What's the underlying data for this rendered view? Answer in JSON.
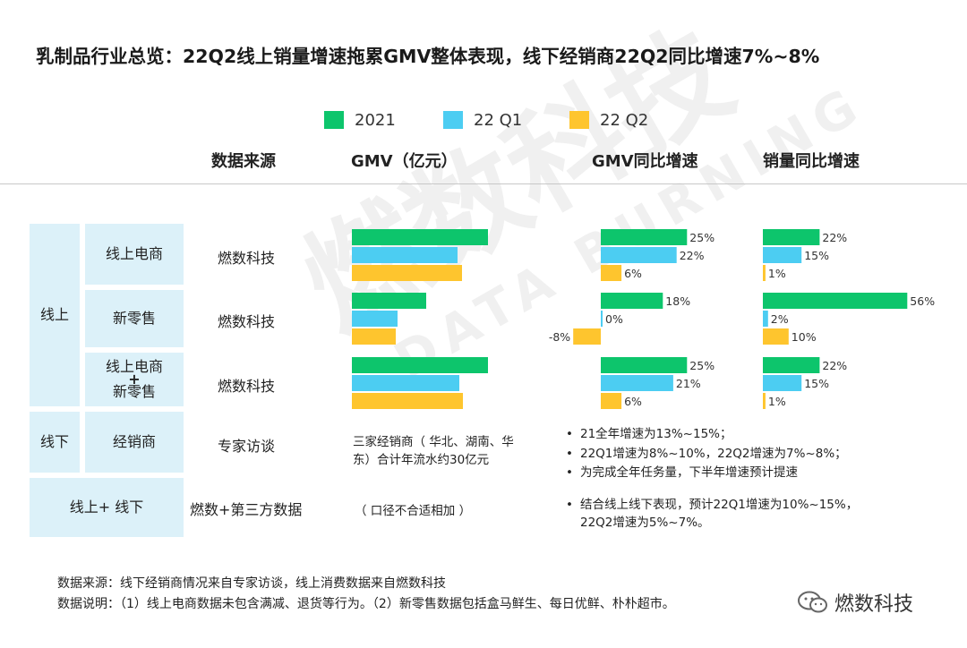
{
  "title": "乳制品行业总览：22Q2线上销量增速拖累GMV整体表现，线下经销商22Q2同比增速7%~8%",
  "watermark": {
    "main": "燃数科技",
    "sub": "DATA BURNING"
  },
  "legend": [
    {
      "label": "2021",
      "color": "#0dc56c"
    },
    {
      "label": "22 Q1",
      "color": "#4ccdf2"
    },
    {
      "label": "22 Q2",
      "color": "#fec52e"
    }
  ],
  "headers": {
    "source": "数据来源",
    "gmv": "GMV（亿元）",
    "gmv_growth": "GMV同比增速",
    "volume_growth": "销量同比增速"
  },
  "groups": {
    "online": "线上",
    "offline": "线下",
    "combined": "线上+ 线下"
  },
  "rows": {
    "ecom": {
      "label": "线上电商",
      "source": "燃数科技"
    },
    "newretail": {
      "label": "新零售",
      "source": "燃数科技"
    },
    "both": {
      "label_top": "线上电商",
      "label_plus": "+",
      "label_bottom": "新零售",
      "source": "燃数科技"
    },
    "dealer": {
      "label": "经销商",
      "source": "专家访谈"
    },
    "combined": {
      "source": "燃数+第三方数据"
    }
  },
  "notes": {
    "dealer_gmv": "三家经销商（ 华北、湖南、华东）合计年流水约30亿元",
    "combined_gmv": "（ 口径不合适相加 ）",
    "dealer_points": [
      "21全年增速为13%~15%；",
      "22Q1增速为8%~10%，22Q2增速为7%~8%；",
      "为完成全年任务量，下半年增速预计提速"
    ],
    "combined_point_1": "结合线上线下表现，预计22Q1增速为10%~15%，",
    "combined_point_2": "22Q2增速为5%~7%。",
    "bullet": "•"
  },
  "footer": {
    "line1": "数据来源：线下经销商情况来自专家访谈，线上消费数据来自燃数科技",
    "line2": "数据说明：（1）线上电商数据未包含满减、退货等行为。（2）新零售数据包括盒马鲜生、每日优鲜、朴朴超市。"
  },
  "brand": "燃数科技",
  "chart_data": [
    {
      "type": "bar",
      "title": "GMV（亿元）",
      "note": "relative magnitudes, no axis labels shown",
      "categories": [
        "线上电商",
        "新零售",
        "线上电商+新零售"
      ],
      "series": [
        {
          "name": "2021",
          "values": [
            152,
            83,
            152
          ]
        },
        {
          "name": "22 Q1",
          "values": [
            118,
            51,
            120
          ]
        },
        {
          "name": "22 Q2",
          "values": [
            123,
            49,
            124
          ]
        }
      ]
    },
    {
      "type": "bar",
      "title": "GMV同比增速",
      "categories": [
        "线上电商",
        "新零售",
        "线上电商+新零售"
      ],
      "series": [
        {
          "name": "2021",
          "values": [
            25,
            18,
            25
          ],
          "labels": [
            "25%",
            "18%",
            "25%"
          ]
        },
        {
          "name": "22 Q1",
          "values": [
            22,
            0,
            21
          ],
          "labels": [
            "22%",
            "0%",
            "21%"
          ]
        },
        {
          "name": "22 Q2",
          "values": [
            6,
            -8,
            6
          ],
          "labels": [
            "6%",
            "-8%",
            "6%"
          ]
        }
      ]
    },
    {
      "type": "bar",
      "title": "销量同比增速",
      "categories": [
        "线上电商",
        "新零售",
        "线上电商+新零售"
      ],
      "series": [
        {
          "name": "2021",
          "values": [
            22,
            56,
            22
          ],
          "labels": [
            "22%",
            "56%",
            "22%"
          ]
        },
        {
          "name": "22 Q1",
          "values": [
            15,
            2,
            15
          ],
          "labels": [
            "15%",
            "2%",
            "15%"
          ]
        },
        {
          "name": "22 Q2",
          "values": [
            1,
            10,
            1
          ],
          "labels": [
            "1%",
            "10%",
            "1%"
          ]
        }
      ]
    }
  ]
}
